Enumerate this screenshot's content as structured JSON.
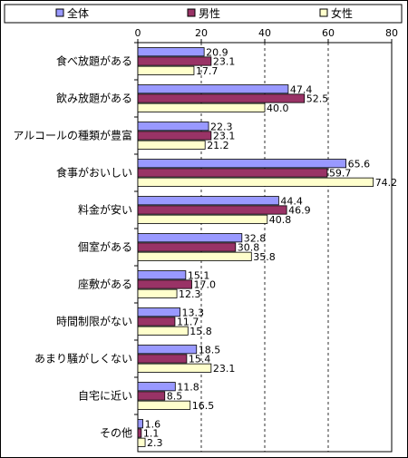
{
  "chart_data": {
    "type": "bar",
    "orientation": "horizontal",
    "categories": [
      "食べ放題がある",
      "飲み放題がある",
      "アルコールの種類が豊富",
      "食事がおいしい",
      "料金が安い",
      "個室がある",
      "座敷がある",
      "時間制限がない",
      "あまり騒がしくない",
      "自宅に近い",
      "その他"
    ],
    "series": [
      {
        "name": "全体",
        "color": "#9999ff",
        "values": [
          20.9,
          47.4,
          22.3,
          65.6,
          44.4,
          32.8,
          15.1,
          13.3,
          18.5,
          11.8,
          1.6
        ]
      },
      {
        "name": "男性",
        "color": "#993366",
        "values": [
          23.1,
          52.5,
          23.1,
          59.7,
          46.9,
          30.8,
          17.0,
          11.7,
          15.4,
          8.5,
          1.1
        ]
      },
      {
        "name": "女性",
        "color": "#ffffcc",
        "values": [
          17.7,
          40.0,
          21.2,
          74.2,
          40.8,
          35.8,
          12.3,
          15.8,
          23.1,
          16.5,
          2.3
        ]
      }
    ],
    "xlim": [
      0,
      80
    ],
    "xticks": [
      "0",
      "20",
      "40",
      "60",
      "80"
    ],
    "grid": "vertical dashed",
    "legend": "top",
    "value_labels": [
      [
        "20.9",
        "47.4",
        "22.3",
        "65.6",
        "44.4",
        "32.8",
        "15.1",
        "13.3",
        "18.5",
        "11.8",
        "1.6"
      ],
      [
        "23.1",
        "52.5",
        "23.1",
        "59.7",
        "46.9",
        "30.8",
        "17.0",
        "11.7",
        "15.4",
        "8.5",
        "1.1"
      ],
      [
        "17.7",
        "40.0",
        "21.2",
        "74.2",
        "40.8",
        "35.8",
        "12.3",
        "15.8",
        "23.1",
        "16.5",
        "2.3"
      ]
    ]
  }
}
